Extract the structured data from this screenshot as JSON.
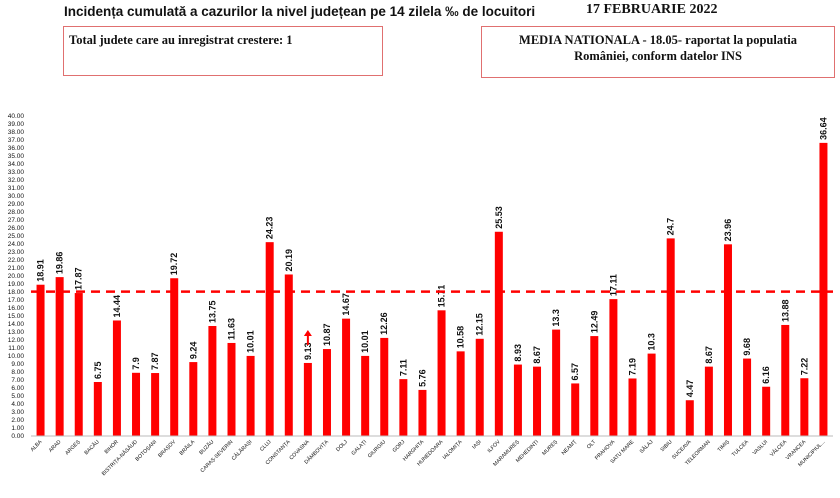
{
  "header": {
    "title": "Incidența cumulată a cazurilor la nivel județean pe 14 zilela ‰ de locuitori",
    "date": "17 FEBRUARIE 2022",
    "box_left": "Total judete care au inregistrat crestere: 1",
    "box_right_line1": "MEDIA NATIONALA - 18.05-  raportat la populatia",
    "box_right_line2": "României, conform datelor INS"
  },
  "colors": {
    "bar": "#ff0000",
    "reference_line": "#ff0000",
    "arrow": "#ff0000"
  },
  "chart_data": {
    "type": "bar",
    "categories": [
      "ALBA",
      "ARAD",
      "ARGEȘ",
      "BACĂU",
      "BIHOR",
      "BISTRIȚA-NĂSĂUD",
      "BOTOȘANI",
      "BRAȘOV",
      "BRĂILA",
      "BUZĂU",
      "CARAȘ-SEVERIN",
      "CĂLĂRAȘI",
      "CLUJ",
      "CONSTANȚA",
      "COVASNA",
      "DÂMBOVIȚA",
      "DOLJ",
      "GALAȚI",
      "GIURGIU",
      "GORJ",
      "HARGHITA",
      "HUNEDOARA",
      "IALOMIȚA",
      "IAȘI",
      "ILFOV",
      "MARAMUREȘ",
      "MEHEDINȚI",
      "MUREȘ",
      "NEAMȚ",
      "OLT",
      "PRAHOVA",
      "SATU MARE",
      "SĂLAJ",
      "SIBIU",
      "SUCEAVA",
      "TELEORMAN",
      "TIMIȘ",
      "TULCEA",
      "VASLUI",
      "VÂLCEA",
      "VRANCEA",
      "MUNICIPIUL..."
    ],
    "values": [
      18.91,
      19.86,
      17.87,
      6.75,
      14.44,
      7.9,
      7.87,
      19.72,
      9.24,
      13.75,
      11.63,
      10.01,
      24.23,
      20.19,
      9.13,
      10.87,
      14.67,
      10.01,
      12.26,
      7.11,
      5.76,
      15.71,
      10.58,
      12.15,
      25.53,
      8.93,
      8.67,
      13.3,
      6.57,
      12.49,
      17.11,
      7.19,
      10.3,
      24.7,
      4.47,
      8.67,
      23.96,
      9.68,
      6.16,
      13.88,
      7.22,
      36.64
    ],
    "value_labels": [
      "18.91",
      "19.86",
      "17.87",
      "6.75",
      "14.44",
      "7.9",
      "7.87",
      "19.72",
      "9.24",
      "13.75",
      "11.63",
      "10.01",
      "24.23",
      "20.19",
      "9.13",
      "10.87",
      "14.67",
      "10.01",
      "12.26",
      "7.11",
      "5.76",
      "15.71",
      "10.58",
      "12.15",
      "25.53",
      "8.93",
      "8.67",
      "13.3",
      "6.57",
      "12.49",
      "17.11",
      "7.19",
      "10.3",
      "24.7",
      "4.47",
      "8.67",
      "23.96",
      "9.68",
      "6.16",
      "13.88",
      "7.22",
      "36.64"
    ],
    "reference_value": 18.05,
    "increase_marker_category": "COVASNA",
    "ylim": [
      0,
      40
    ],
    "ytick_step": 1,
    "y_tick_labels": [
      "0.00",
      "1.00",
      "2.00",
      "3.00",
      "4.00",
      "5.00",
      "6.00",
      "7.00",
      "8.00",
      "9.00",
      "10.00",
      "11.00",
      "12.00",
      "13.00",
      "14.00",
      "15.00",
      "16.00",
      "17.00",
      "18.00",
      "19.00",
      "20.00",
      "21.00",
      "22.00",
      "23.00",
      "24.00",
      "25.00",
      "26.00",
      "27.00",
      "28.00",
      "29.00",
      "30.00",
      "31.00",
      "32.00",
      "33.00",
      "34.00",
      "35.00",
      "36.00",
      "37.00",
      "38.00",
      "39.00",
      "40.00"
    ],
    "grid": false,
    "legend": "none"
  }
}
